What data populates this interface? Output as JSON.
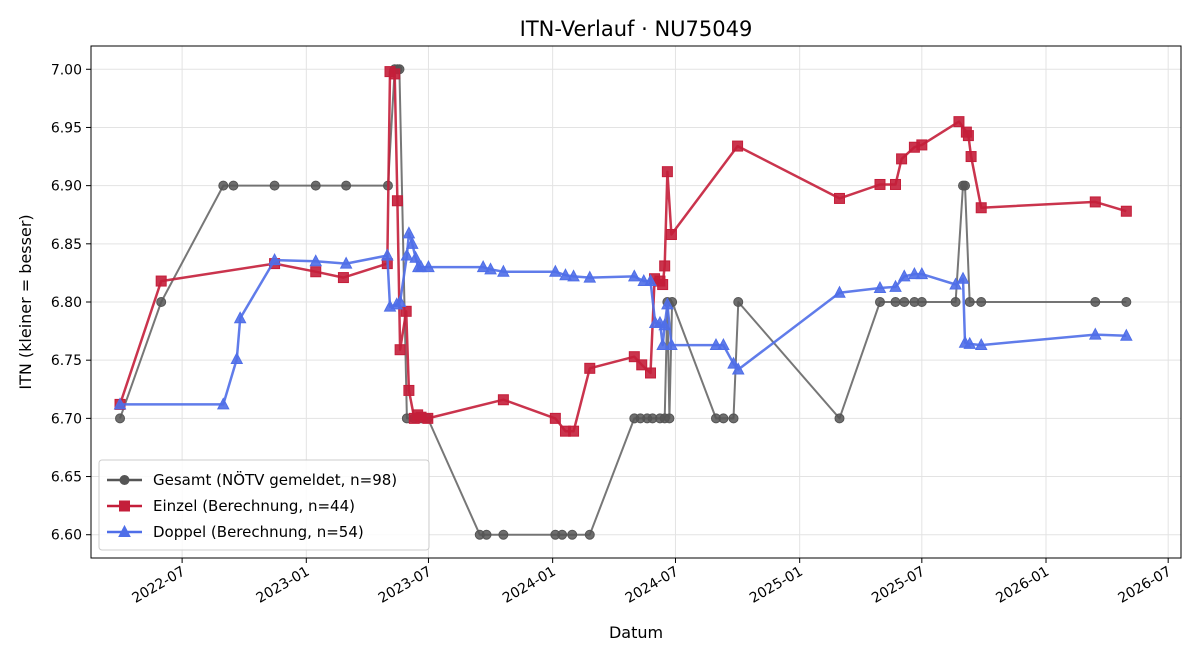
{
  "chart_data": {
    "type": "line",
    "title": "ITN-Verlauf · NU75049",
    "xlabel": "Datum",
    "ylabel": "ITN  (kleiner = besser)",
    "x_type": "date",
    "xlim": [
      "2022-02-16",
      "2026-07-20"
    ],
    "ylim": [
      6.58,
      7.02
    ],
    "x_ticks": [
      {
        "date": "2022-07-01",
        "label": "2022-07"
      },
      {
        "date": "2023-01-01",
        "label": "2023-01"
      },
      {
        "date": "2023-07-01",
        "label": "2023-07"
      },
      {
        "date": "2024-01-01",
        "label": "2024-01"
      },
      {
        "date": "2024-07-01",
        "label": "2024-07"
      },
      {
        "date": "2025-01-01",
        "label": "2025-01"
      },
      {
        "date": "2025-07-01",
        "label": "2025-07"
      },
      {
        "date": "2026-01-01",
        "label": "2026-01"
      },
      {
        "date": "2026-07-01",
        "label": "2026-07"
      }
    ],
    "y_ticks": [
      {
        "value": 6.6,
        "label": "6.60"
      },
      {
        "value": 6.65,
        "label": "6.65"
      },
      {
        "value": 6.7,
        "label": "6.70"
      },
      {
        "value": 6.75,
        "label": "6.75"
      },
      {
        "value": 6.8,
        "label": "6.80"
      },
      {
        "value": 6.85,
        "label": "6.85"
      },
      {
        "value": 6.9,
        "label": "6.90"
      },
      {
        "value": 6.95,
        "label": "6.95"
      },
      {
        "value": 7.0,
        "label": "7.00"
      }
    ],
    "grid": true,
    "legend_position": "lower-left",
    "series": [
      {
        "name": "Gesamt (NÖTV gemeldet, n=98)",
        "color": "#555555",
        "marker": "circle",
        "points": [
          [
            "2022-03-31",
            6.7
          ],
          [
            "2022-05-31",
            6.8
          ],
          [
            "2022-08-31",
            6.9
          ],
          [
            "2022-09-15",
            6.9
          ],
          [
            "2022-11-15",
            6.9
          ],
          [
            "2023-01-15",
            6.9
          ],
          [
            "2023-03-01",
            6.9
          ],
          [
            "2023-05-02",
            6.9
          ],
          [
            "2023-05-12",
            7.0
          ],
          [
            "2023-05-16",
            7.0
          ],
          [
            "2023-05-19",
            7.0
          ],
          [
            "2023-05-30",
            6.7
          ],
          [
            "2023-06-10",
            6.7
          ],
          [
            "2023-06-20",
            6.7
          ],
          [
            "2023-06-30",
            6.7
          ],
          [
            "2023-09-15",
            6.6
          ],
          [
            "2023-09-25",
            6.6
          ],
          [
            "2023-10-20",
            6.6
          ],
          [
            "2024-01-05",
            6.6
          ],
          [
            "2024-01-15",
            6.6
          ],
          [
            "2024-01-30",
            6.6
          ],
          [
            "2024-02-25",
            6.6
          ],
          [
            "2024-05-01",
            6.7
          ],
          [
            "2024-05-10",
            6.7
          ],
          [
            "2024-05-20",
            6.7
          ],
          [
            "2024-05-28",
            6.7
          ],
          [
            "2024-06-08",
            6.7
          ],
          [
            "2024-06-15",
            6.7
          ],
          [
            "2024-06-19",
            6.8
          ],
          [
            "2024-06-22",
            6.7
          ],
          [
            "2024-06-26",
            6.8
          ],
          [
            "2024-08-30",
            6.7
          ],
          [
            "2024-09-10",
            6.7
          ],
          [
            "2024-09-25",
            6.7
          ],
          [
            "2024-10-02",
            6.8
          ],
          [
            "2025-03-01",
            6.7
          ],
          [
            "2025-04-30",
            6.8
          ],
          [
            "2025-05-23",
            6.8
          ],
          [
            "2025-06-05",
            6.8
          ],
          [
            "2025-06-20",
            6.8
          ],
          [
            "2025-07-01",
            6.8
          ],
          [
            "2025-08-20",
            6.8
          ],
          [
            "2025-08-31",
            6.9
          ],
          [
            "2025-09-03",
            6.9
          ],
          [
            "2025-09-10",
            6.8
          ],
          [
            "2025-09-27",
            6.8
          ],
          [
            "2026-03-15",
            6.8
          ],
          [
            "2026-04-30",
            6.8
          ]
        ]
      },
      {
        "name": "Einzel (Berechnung, n=44)",
        "color": "#c41e3a",
        "marker": "square",
        "points": [
          [
            "2022-03-31",
            6.712
          ],
          [
            "2022-05-31",
            6.818
          ],
          [
            "2022-11-15",
            6.833
          ],
          [
            "2023-01-15",
            6.826
          ],
          [
            "2023-02-25",
            6.821
          ],
          [
            "2023-05-01",
            6.833
          ],
          [
            "2023-05-05",
            6.998
          ],
          [
            "2023-05-12",
            6.996
          ],
          [
            "2023-05-16",
            6.887
          ],
          [
            "2023-05-20",
            6.759
          ],
          [
            "2023-05-29",
            6.792
          ],
          [
            "2023-06-02",
            6.724
          ],
          [
            "2023-06-10",
            6.7
          ],
          [
            "2023-06-15",
            6.703
          ],
          [
            "2023-06-20",
            6.701
          ],
          [
            "2023-06-30",
            6.7
          ],
          [
            "2023-10-20",
            6.716
          ],
          [
            "2024-01-05",
            6.7
          ],
          [
            "2024-01-20",
            6.689
          ],
          [
            "2024-02-01",
            6.689
          ],
          [
            "2024-02-25",
            6.743
          ],
          [
            "2024-05-01",
            6.753
          ],
          [
            "2024-05-12",
            6.746
          ],
          [
            "2024-05-25",
            6.739
          ],
          [
            "2024-05-31",
            6.82
          ],
          [
            "2024-06-08",
            6.818
          ],
          [
            "2024-06-12",
            6.815
          ],
          [
            "2024-06-15",
            6.831
          ],
          [
            "2024-06-19",
            6.912
          ],
          [
            "2024-06-25",
            6.858
          ],
          [
            "2024-10-01",
            6.934
          ],
          [
            "2025-03-01",
            6.889
          ],
          [
            "2025-04-30",
            6.901
          ],
          [
            "2025-05-23",
            6.901
          ],
          [
            "2025-06-01",
            6.923
          ],
          [
            "2025-06-20",
            6.933
          ],
          [
            "2025-07-01",
            6.935
          ],
          [
            "2025-08-25",
            6.955
          ],
          [
            "2025-09-05",
            6.946
          ],
          [
            "2025-09-08",
            6.943
          ],
          [
            "2025-09-12",
            6.925
          ],
          [
            "2025-09-27",
            6.881
          ],
          [
            "2026-03-15",
            6.886
          ],
          [
            "2026-04-30",
            6.878
          ]
        ]
      },
      {
        "name": "Doppel (Berechnung, n=54)",
        "color": "#4f6ee8",
        "marker": "triangle",
        "points": [
          [
            "2022-03-31",
            6.712
          ],
          [
            "2022-08-31",
            6.712
          ],
          [
            "2022-09-20",
            6.751
          ],
          [
            "2022-09-25",
            6.786
          ],
          [
            "2022-11-15",
            6.836
          ],
          [
            "2023-01-15",
            6.835
          ],
          [
            "2023-03-01",
            6.833
          ],
          [
            "2023-05-01",
            6.84
          ],
          [
            "2023-05-05",
            6.796
          ],
          [
            "2023-05-15",
            6.798
          ],
          [
            "2023-05-20",
            6.8
          ],
          [
            "2023-05-30",
            6.84
          ],
          [
            "2023-06-02",
            6.859
          ],
          [
            "2023-06-07",
            6.85
          ],
          [
            "2023-06-12",
            6.838
          ],
          [
            "2023-06-16",
            6.83
          ],
          [
            "2023-06-20",
            6.83
          ],
          [
            "2023-07-01",
            6.83
          ],
          [
            "2023-09-20",
            6.83
          ],
          [
            "2023-10-01",
            6.828
          ],
          [
            "2023-10-20",
            6.826
          ],
          [
            "2024-01-05",
            6.826
          ],
          [
            "2024-01-20",
            6.823
          ],
          [
            "2024-02-01",
            6.822
          ],
          [
            "2024-02-25",
            6.821
          ],
          [
            "2024-05-01",
            6.822
          ],
          [
            "2024-05-15",
            6.818
          ],
          [
            "2024-05-25",
            6.818
          ],
          [
            "2024-06-01",
            6.782
          ],
          [
            "2024-06-08",
            6.782
          ],
          [
            "2024-06-12",
            6.763
          ],
          [
            "2024-06-15",
            6.78
          ],
          [
            "2024-06-19",
            6.798
          ],
          [
            "2024-06-25",
            6.763
          ],
          [
            "2024-08-30",
            6.763
          ],
          [
            "2024-09-10",
            6.763
          ],
          [
            "2024-09-25",
            6.747
          ],
          [
            "2024-10-02",
            6.742
          ],
          [
            "2025-03-01",
            6.808
          ],
          [
            "2025-04-30",
            6.812
          ],
          [
            "2025-05-23",
            6.813
          ],
          [
            "2025-06-05",
            6.822
          ],
          [
            "2025-06-20",
            6.824
          ],
          [
            "2025-07-01",
            6.824
          ],
          [
            "2025-08-20",
            6.815
          ],
          [
            "2025-08-31",
            6.82
          ],
          [
            "2025-09-03",
            6.765
          ],
          [
            "2025-09-10",
            6.764
          ],
          [
            "2025-09-27",
            6.763
          ],
          [
            "2026-03-15",
            6.772
          ],
          [
            "2026-04-30",
            6.771
          ]
        ]
      }
    ]
  }
}
